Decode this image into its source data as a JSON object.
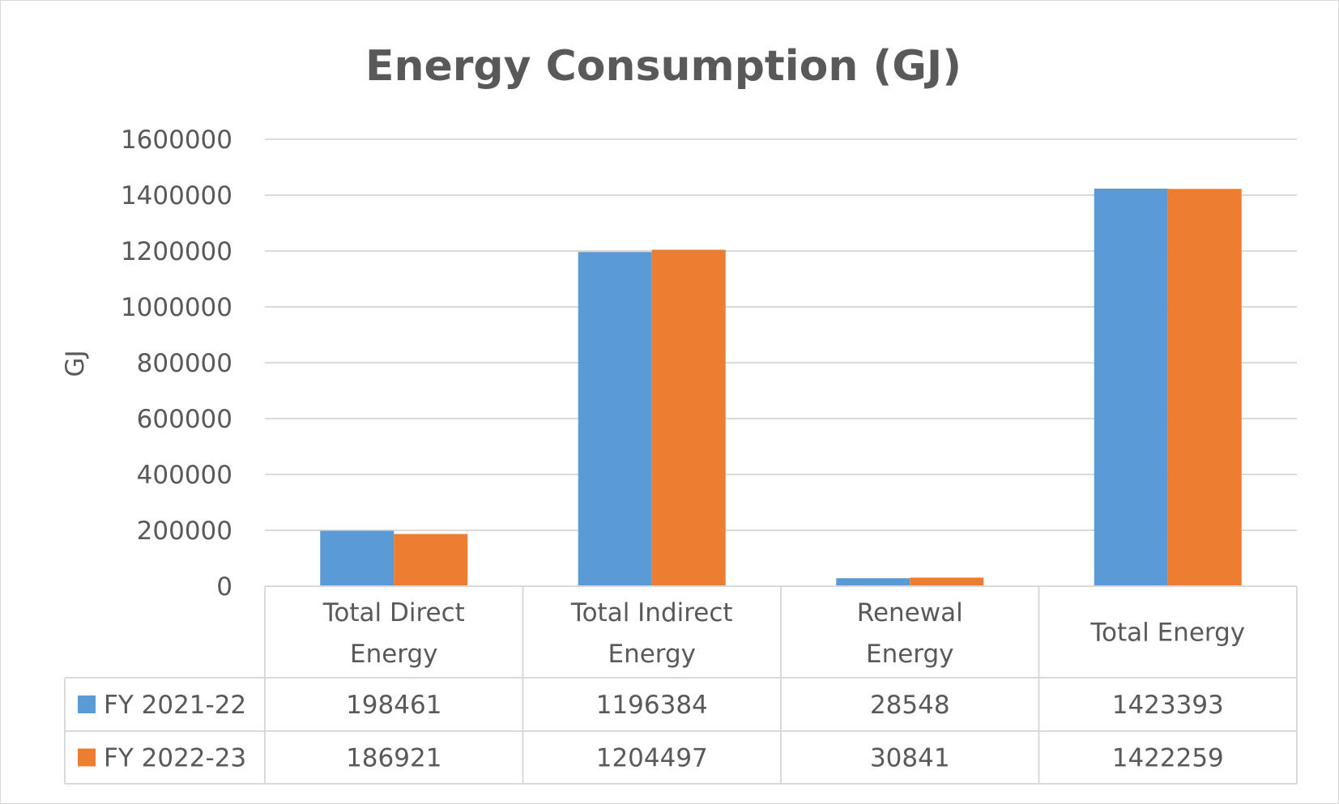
{
  "chart_data": {
    "type": "bar",
    "title": "Energy Consumption (GJ)",
    "xlabel": "",
    "ylabel": "GJ",
    "ylim": [
      0,
      1600000
    ],
    "yticks": [
      "0",
      "200000",
      "400000",
      "600000",
      "800000",
      "1000000",
      "1200000",
      "1400000",
      "1600000"
    ],
    "grid": true,
    "legend": "data-table",
    "categories": [
      [
        "Total Direct",
        "Energy"
      ],
      [
        "Total Indirect",
        "Energy"
      ],
      [
        "Renewal",
        "Energy"
      ],
      [
        "Total Energy"
      ]
    ],
    "series": [
      {
        "name": "FY 2021-22",
        "color": "#5b9bd5",
        "values": [
          198461,
          1196384,
          28548,
          1423393
        ],
        "labels": [
          "198461",
          "1196384",
          "28548",
          "1423393"
        ]
      },
      {
        "name": "FY 2022-23",
        "color": "#ed7d31",
        "values": [
          186921,
          1204497,
          30841,
          1422259
        ],
        "labels": [
          "186921",
          "1204497",
          "30841",
          "1422259"
        ]
      }
    ]
  }
}
